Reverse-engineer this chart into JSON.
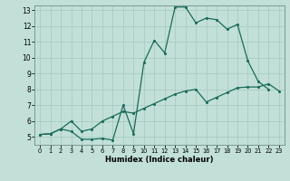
{
  "xlabel": "Humidex (Indice chaleur)",
  "bg_color": "#c2e0d8",
  "line_color": "#1a6b5a",
  "grid_color": "#a8ccc4",
  "xlim": [
    -0.5,
    23.5
  ],
  "ylim": [
    4.5,
    13.3
  ],
  "yticks": [
    5,
    6,
    7,
    8,
    9,
    10,
    11,
    12,
    13
  ],
  "xticks": [
    0,
    1,
    2,
    3,
    4,
    5,
    6,
    7,
    8,
    9,
    10,
    11,
    12,
    13,
    14,
    15,
    16,
    17,
    18,
    19,
    20,
    21,
    22,
    23
  ],
  "line1_x": [
    0,
    1,
    2,
    3,
    4,
    5,
    6,
    7,
    8,
    9,
    10,
    11,
    12,
    13,
    14,
    15,
    16,
    17,
    18,
    19,
    20,
    21,
    22,
    23
  ],
  "line1_y": [
    5.15,
    5.2,
    5.5,
    5.35,
    4.85,
    4.85,
    4.9,
    4.8,
    7.0,
    5.2,
    9.7,
    11.1,
    10.3,
    13.2,
    13.2,
    12.2,
    12.5,
    12.4,
    11.8,
    12.1,
    9.8,
    8.5,
    8.0,
    null
  ],
  "line2_x": [
    0,
    1,
    2,
    3,
    4,
    5,
    6,
    7,
    8,
    9,
    10,
    11,
    12,
    13,
    14,
    15,
    16,
    17,
    18,
    19,
    20,
    21,
    22,
    23
  ],
  "line2_y": [
    5.15,
    5.2,
    5.5,
    6.0,
    5.35,
    5.5,
    6.0,
    6.3,
    6.6,
    6.5,
    6.8,
    7.1,
    7.4,
    7.7,
    7.9,
    8.0,
    7.2,
    7.5,
    7.8,
    8.1,
    8.15,
    8.15,
    8.35,
    7.9
  ]
}
